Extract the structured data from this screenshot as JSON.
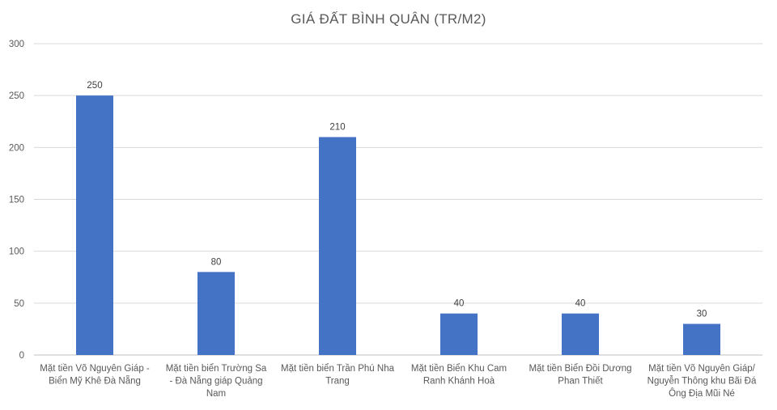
{
  "chart_data": {
    "type": "bar",
    "title": "GIÁ ĐẤT BÌNH QUÂN (TR/M2)",
    "xlabel": "",
    "ylabel": "",
    "ylim": [
      0,
      300
    ],
    "yticks": [
      0,
      50,
      100,
      150,
      200,
      250,
      300
    ],
    "grid": true,
    "bar_color": "#4472C4",
    "categories": [
      [
        "Mặt tiền Võ Nguyên Giáp -",
        "Biển Mỹ Khê Đà Nẵng"
      ],
      [
        "Mặt tiền biển  Trường Sa",
        "- Đà Nẵng  giáp Quảng",
        "Nam"
      ],
      [
        "Mặt tiền biển Trần Phú Nha",
        "Trang"
      ],
      [
        "Mặt tiền Biển Khu Cam",
        "Ranh Khánh Hoà"
      ],
      [
        "Mặt tiền Biển Đồi Dương",
        "Phan Thiết"
      ],
      [
        "Mặt tiền Võ Nguyên Giáp/",
        "Nguyễn Thông khu Bãi Đá",
        "Ông Địa Mũi Né"
      ]
    ],
    "values": [
      250,
      80,
      210,
      40,
      40,
      30
    ],
    "data_labels": [
      "250",
      "80",
      "210",
      "40",
      "40",
      "30"
    ]
  }
}
